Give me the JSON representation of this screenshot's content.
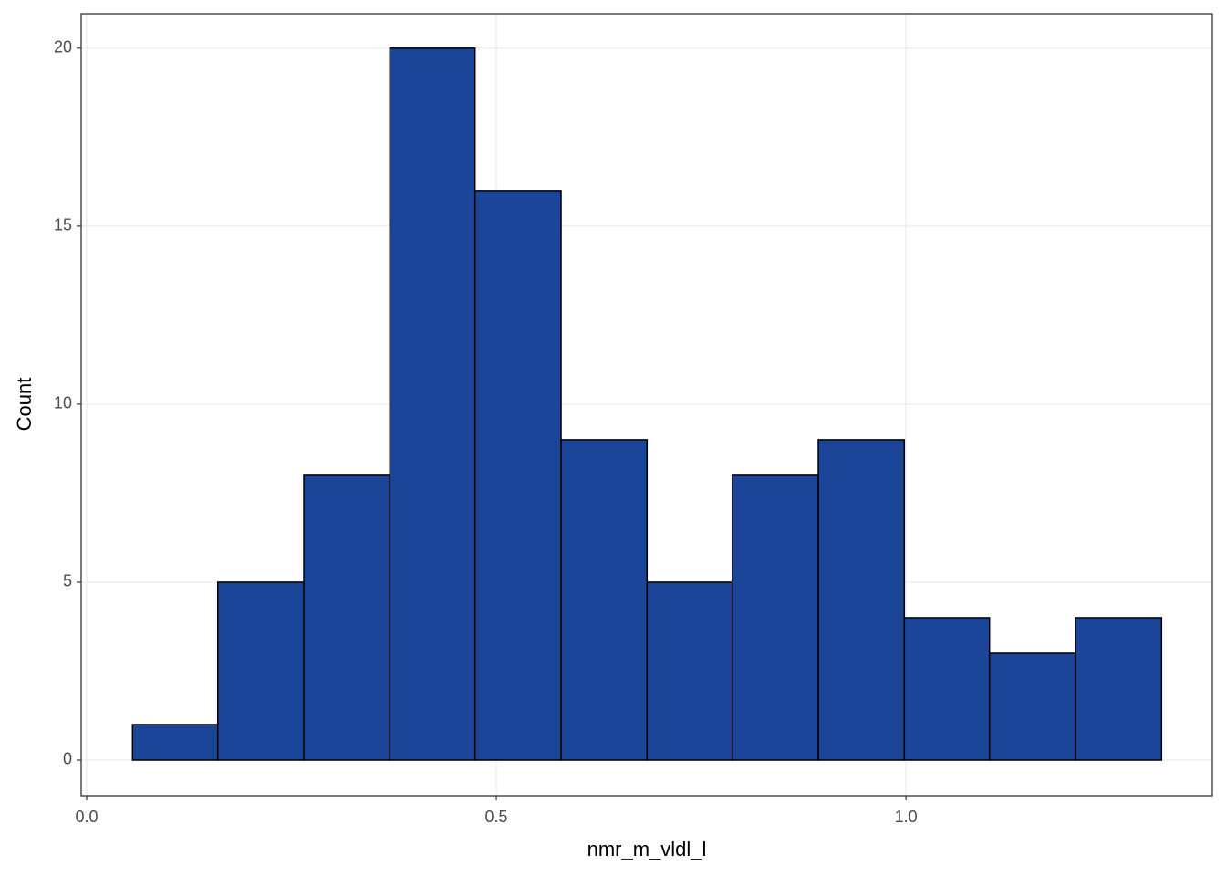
{
  "chart_data": {
    "type": "histogram",
    "x_label": "nmr_m_vldl_l",
    "y_label": "Count",
    "bins": [
      0.056,
      0.16,
      0.265,
      0.37,
      0.474,
      0.579,
      0.684,
      0.788,
      0.893,
      0.998,
      1.102,
      1.207,
      1.312
    ],
    "values": [
      1,
      5,
      8,
      20,
      16,
      9,
      5,
      8,
      9,
      4,
      3,
      4
    ],
    "color": "#1a4599",
    "edge_color": "#000000",
    "xlim": [
      -0.0067,
      1.374
    ],
    "ylim": [
      -1,
      20.97
    ],
    "xticks": [
      {
        "value": 0,
        "label": "0.0"
      },
      {
        "value": 0.5,
        "label": "0.5"
      },
      {
        "value": 1,
        "label": "1.0"
      }
    ],
    "yticks": [
      0,
      5,
      10,
      15,
      20
    ],
    "grid": true
  }
}
